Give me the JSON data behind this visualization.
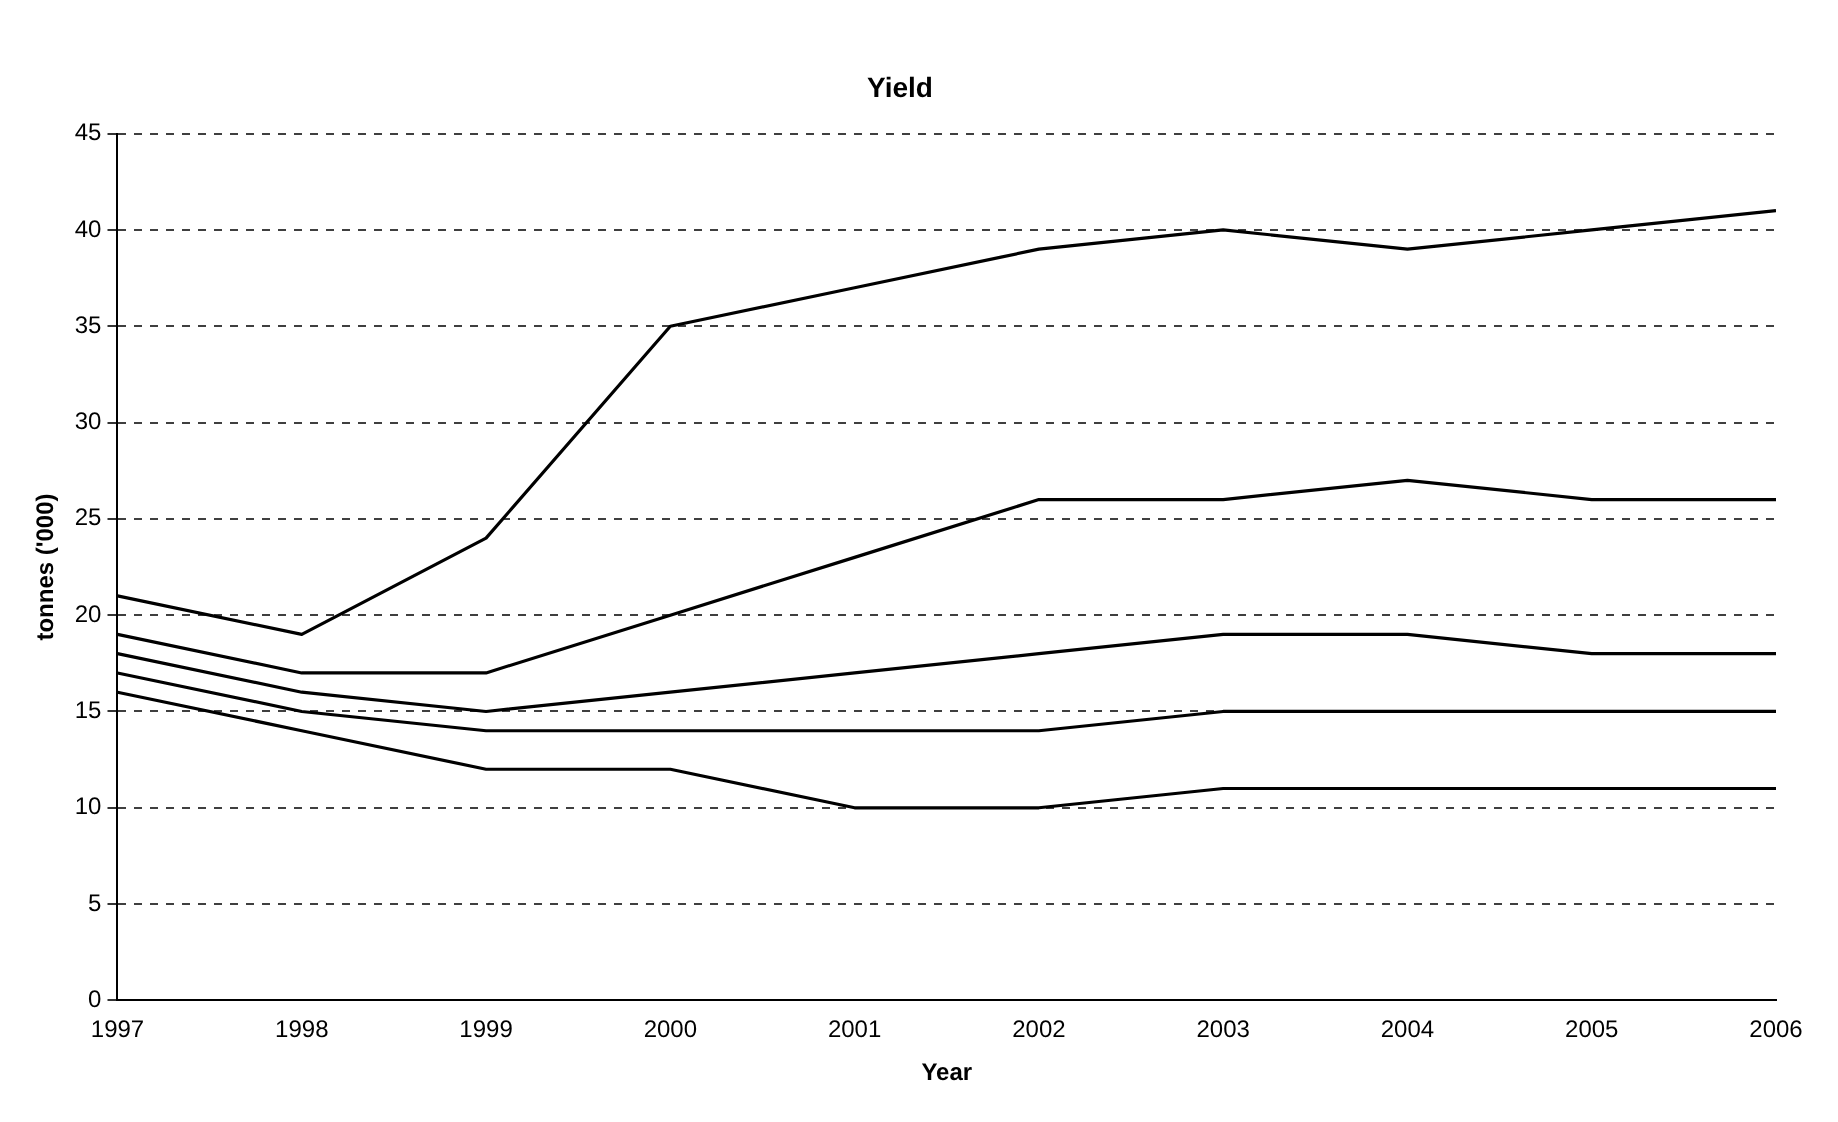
{
  "chart_data": {
    "type": "line",
    "title": "Yield",
    "xlabel": "Year",
    "ylabel": "tonnes ('000)",
    "x": [
      1997,
      1998,
      1999,
      2000,
      2001,
      2002,
      2003,
      2004,
      2005,
      2006
    ],
    "series": [
      {
        "color": "#000000",
        "values": [
          21,
          19,
          24,
          35,
          37,
          39,
          40,
          39,
          40,
          41
        ]
      },
      {
        "color": "#000000",
        "values": [
          19,
          17,
          17,
          20,
          23,
          26,
          26,
          27,
          26,
          26
        ]
      },
      {
        "color": "#000000",
        "values": [
          18,
          16,
          15,
          16,
          17,
          18,
          19,
          19,
          18,
          18
        ]
      },
      {
        "color": "#000000",
        "values": [
          17,
          15,
          14,
          14,
          14,
          14,
          15,
          15,
          15,
          15
        ]
      },
      {
        "color": "#000000",
        "values": [
          16,
          14,
          12,
          12,
          10,
          10,
          11,
          11,
          11,
          11
        ]
      }
    ],
    "xlim": [
      1997,
      2006
    ],
    "xticks": [
      1997,
      1998,
      1999,
      2000,
      2001,
      2002,
      2003,
      2004,
      2005,
      2006
    ],
    "ylim": [
      0,
      45
    ],
    "yticks": [
      0,
      5,
      10,
      15,
      20,
      25,
      30,
      35,
      40,
      45
    ],
    "grid": "y",
    "line_style": "solid",
    "marker": "none",
    "legend": false
  }
}
